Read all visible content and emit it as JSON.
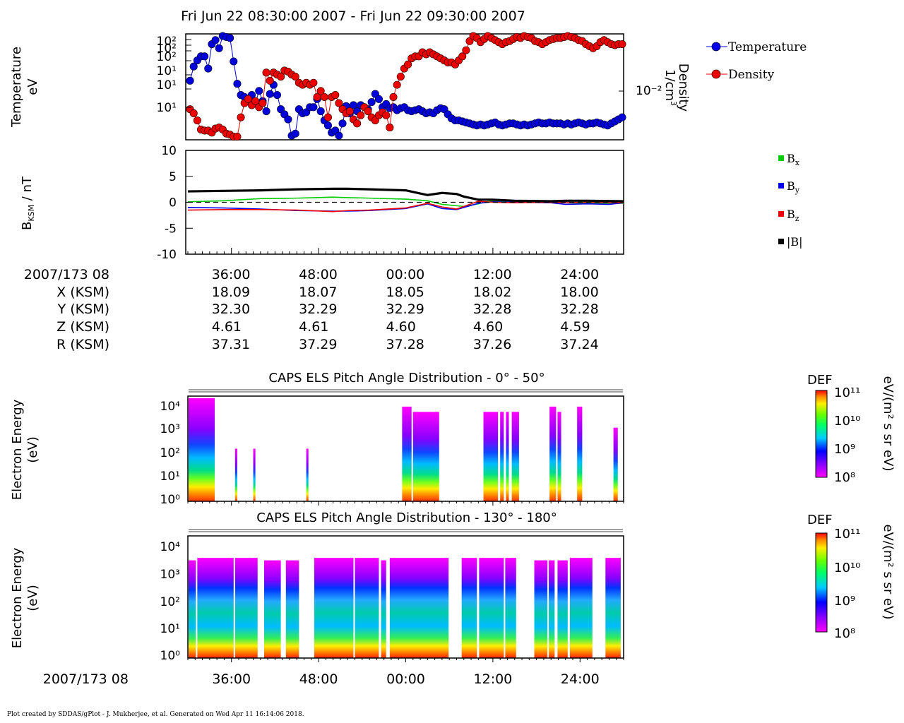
{
  "title": "Fri Jun 22 08:30:00 2007 - Fri Jun 22 09:30:00 2007",
  "footer": "Plot created by SDDAS/gPlot - J. Mukherjee, et al.  Generated on Wed Apr 11 16:14:06 2018.",
  "colors": {
    "temperature": "#0000dd",
    "density": "#ee0000",
    "bx": "#00cc00",
    "by": "#0000ee",
    "bz": "#ee0000",
    "btot": "#000000"
  },
  "chart_data": [
    {
      "type": "scatter",
      "id": "plasma",
      "ylabel_left": [
        "Temperature",
        "eV"
      ],
      "ylabel_right": [
        "Density",
        "1/cm"
      ],
      "ylabel_right_sup": "3",
      "left_ticks": [
        "10²",
        "10²",
        "10²",
        "10¹",
        "10¹",
        "10¹"
      ],
      "right_tick": "10⁻²",
      "x_range_minutes": [
        0,
        60
      ],
      "legend": [
        {
          "name": "Temperature"
        },
        {
          "name": "Density"
        }
      ],
      "series": [
        {
          "name": "Temperature",
          "note": "values as approximate fraction of panel height (0=bottom,1=top)",
          "x": [
            0.3,
            0.8,
            1.3,
            1.8,
            2.3,
            2.8,
            3.3,
            3.8,
            4.3,
            4.8,
            5.3,
            5.8,
            6.3,
            6.8,
            7.3,
            7.8,
            8.3,
            8.8,
            9.3,
            9.8,
            10.3,
            10.8,
            11.3,
            11.8,
            12.3,
            12.8,
            13.3,
            13.8,
            14.3,
            14.8,
            15.3,
            15.8,
            16.3,
            16.8,
            17.3,
            17.8,
            18.3,
            18.8,
            19.3,
            19.8,
            20.3,
            20.8,
            21.3,
            21.8,
            22.3,
            22.8,
            23.3,
            23.8,
            24.3,
            24.8,
            25.3,
            25.8,
            26.3,
            26.8,
            27.3,
            27.8,
            28.3,
            28.8,
            29.3,
            29.8,
            30.3,
            30.8,
            31.3,
            31.8,
            32.3,
            32.8,
            33.3,
            33.8,
            34.3,
            34.8,
            35.3,
            35.8,
            36.3,
            36.8,
            37.3,
            37.8,
            38.3,
            38.8,
            39.3,
            39.8,
            40.3,
            40.8,
            41.3,
            41.8,
            42.3,
            42.8,
            43.3,
            43.8,
            44.3,
            44.8,
            45.3,
            45.8,
            46.3,
            46.8,
            47.3,
            47.8,
            48.3,
            48.8,
            49.3,
            49.8,
            50.3,
            50.8,
            51.3,
            51.8,
            52.3,
            52.8,
            53.3,
            53.8,
            54.3,
            54.8,
            55.3,
            55.8,
            56.3,
            56.8,
            57.3,
            57.8,
            58.3,
            58.8,
            59.3,
            59.8
          ],
          "values": [
            0.56,
            0.7,
            0.76,
            0.8,
            0.8,
            0.68,
            0.92,
            0.96,
            0.88,
            1.0,
            0.99,
            0.98,
            0.75,
            0.53,
            0.42,
            0.4,
            0.36,
            0.42,
            0.34,
            0.46,
            0.36,
            0.26,
            0.43,
            0.52,
            0.42,
            0.28,
            0.23,
            0.18,
            0.02,
            0.04,
            0.28,
            0.24,
            0.25,
            0.3,
            0.3,
            0.38,
            0.26,
            0.17,
            0.12,
            0.05,
            0.07,
            0.02,
            0.14,
            0.31,
            0.24,
            0.32,
            0.26,
            0.32,
            0.3,
            0.28,
            0.35,
            0.43,
            0.38,
            0.3,
            0.33,
            0.29,
            0.3,
            0.27,
            0.29,
            0.3,
            0.27,
            0.26,
            0.27,
            0.28,
            0.26,
            0.24,
            0.25,
            0.24,
            0.27,
            0.29,
            0.28,
            0.23,
            0.19,
            0.17,
            0.17,
            0.16,
            0.15,
            0.14,
            0.13,
            0.12,
            0.13,
            0.12,
            0.13,
            0.14,
            0.15,
            0.13,
            0.12,
            0.13,
            0.14,
            0.14,
            0.13,
            0.12,
            0.13,
            0.12,
            0.13,
            0.14,
            0.15,
            0.14,
            0.14,
            0.15,
            0.14,
            0.14,
            0.14,
            0.13,
            0.14,
            0.13,
            0.14,
            0.15,
            0.14,
            0.13,
            0.14,
            0.14,
            0.15,
            0.14,
            0.13,
            0.12,
            0.14,
            0.16,
            0.18,
            0.2
          ]
        },
        {
          "name": "Density",
          "x": [
            0.3,
            0.8,
            1.3,
            1.8,
            2.3,
            2.8,
            3.3,
            3.8,
            4.3,
            4.8,
            5.3,
            5.8,
            6.3,
            6.8,
            7.3,
            7.8,
            8.3,
            8.8,
            9.3,
            9.8,
            10.3,
            10.8,
            11.3,
            11.8,
            12.3,
            12.8,
            13.3,
            13.8,
            14.3,
            14.8,
            15.3,
            15.8,
            16.3,
            16.8,
            17.3,
            17.8,
            18.3,
            18.8,
            19.3,
            19.8,
            20.3,
            20.8,
            21.3,
            21.8,
            22.3,
            22.8,
            23.3,
            23.8,
            24.3,
            24.8,
            25.3,
            25.8,
            26.3,
            26.8,
            27.3,
            27.8,
            28.3,
            28.8,
            29.3,
            29.8,
            30.3,
            30.8,
            31.3,
            31.8,
            32.3,
            32.8,
            33.3,
            33.8,
            34.3,
            34.8,
            35.3,
            35.8,
            36.3,
            36.8,
            37.3,
            37.8,
            38.3,
            38.8,
            39.3,
            39.8,
            40.3,
            40.8,
            41.3,
            41.8,
            42.3,
            42.8,
            43.3,
            43.8,
            44.3,
            44.8,
            45.3,
            45.8,
            46.3,
            46.8,
            47.3,
            47.8,
            48.3,
            48.8,
            49.3,
            49.8,
            50.3,
            50.8,
            51.3,
            51.8,
            52.3,
            52.8,
            53.3,
            53.8,
            54.3,
            54.8,
            55.3,
            55.8,
            56.3,
            56.8,
            57.3,
            57.8,
            58.3,
            58.8,
            59.3,
            59.8
          ],
          "values": [
            0.28,
            0.24,
            0.17,
            0.08,
            0.07,
            0.07,
            0.05,
            0.09,
            0.1,
            0.08,
            0.04,
            0.03,
            0.01,
            0.01,
            0.2,
            0.34,
            0.38,
            0.32,
            0.36,
            0.3,
            0.34,
            0.64,
            0.56,
            0.64,
            0.62,
            0.6,
            0.66,
            0.65,
            0.62,
            0.6,
            0.54,
            0.52,
            0.54,
            0.52,
            0.54,
            0.4,
            0.46,
            0.4,
            0.2,
            0.4,
            0.42,
            0.34,
            0.28,
            0.24,
            0.26,
            0.18,
            0.14,
            0.22,
            0.3,
            0.26,
            0.2,
            0.17,
            0.22,
            0.25,
            0.22,
            0.1,
            0.4,
            0.52,
            0.6,
            0.68,
            0.72,
            0.78,
            0.8,
            0.8,
            0.84,
            0.82,
            0.84,
            0.82,
            0.8,
            0.78,
            0.76,
            0.74,
            0.74,
            0.72,
            0.76,
            0.8,
            0.86,
            0.95,
            1.0,
            0.98,
            0.94,
            0.97,
            1.0,
            0.98,
            0.96,
            0.94,
            0.92,
            0.94,
            0.95,
            0.97,
            0.99,
            0.98,
            1.0,
            0.99,
            0.98,
            0.95,
            0.94,
            0.92,
            0.94,
            0.96,
            0.97,
            0.98,
            0.98,
            0.99,
            1.0,
            0.99,
            0.98,
            0.96,
            0.95,
            0.92,
            0.9,
            0.88,
            0.9,
            0.94,
            0.96,
            0.94,
            0.92,
            0.91,
            0.92,
            0.92
          ]
        }
      ]
    },
    {
      "type": "line",
      "id": "bfield",
      "ylabel": "B",
      "ylabel_sub": "KSM",
      "ylabel_unit": " / nT",
      "ylim": [
        -10,
        10
      ],
      "ticks": [
        10,
        5,
        0,
        -5,
        -10
      ],
      "x_range_minutes": [
        0,
        60
      ],
      "legend": [
        {
          "name": "B",
          "sub": "x"
        },
        {
          "name": "B",
          "sub": "y"
        },
        {
          "name": "B",
          "sub": "z"
        },
        {
          "name": "|B|"
        }
      ],
      "series": [
        {
          "name": "Bx",
          "x": [
            0,
            5,
            10,
            15,
            20,
            22,
            25,
            30,
            33,
            35,
            38,
            40,
            41,
            42,
            45,
            50,
            52,
            55,
            60
          ],
          "values": [
            0.1,
            0.3,
            0.7,
            0.8,
            1.0,
            0.9,
            0.8,
            0.6,
            0.3,
            -0.4,
            -0.8,
            -0.3,
            0.1,
            0.2,
            0.0,
            0.2,
            -0.1,
            -0.2,
            -0.2
          ]
        },
        {
          "name": "By",
          "x": [
            0,
            5,
            10,
            15,
            20,
            22,
            25,
            30,
            33,
            35,
            37,
            38,
            40,
            42,
            45,
            50,
            52,
            55,
            58,
            60
          ],
          "values": [
            -1.0,
            -1.1,
            -1.3,
            -1.6,
            -1.7,
            -1.7,
            -1.6,
            -1.2,
            -0.3,
            -1.2,
            -1.4,
            -1.0,
            -0.2,
            0.1,
            0.0,
            -0.1,
            -0.4,
            -0.3,
            -0.4,
            -0.1
          ]
        },
        {
          "name": "Bz",
          "x": [
            0,
            5,
            10,
            15,
            20,
            22,
            25,
            30,
            33,
            35,
            37,
            38,
            40,
            42,
            45,
            50,
            52,
            55,
            60
          ],
          "values": [
            -1.5,
            -1.4,
            -1.4,
            -1.5,
            -1.8,
            -1.6,
            -1.5,
            -1.1,
            -0.2,
            -0.9,
            -1.3,
            -0.8,
            0.2,
            0.0,
            -0.1,
            0.0,
            -0.1,
            0.0,
            -0.1
          ]
        },
        {
          "name": "|B|",
          "x": [
            0,
            5,
            10,
            15,
            20,
            22,
            25,
            30,
            32,
            33,
            35,
            37,
            38,
            40,
            42,
            45,
            50,
            52,
            55,
            60
          ],
          "values": [
            2.1,
            2.2,
            2.3,
            2.5,
            2.6,
            2.6,
            2.5,
            2.3,
            1.7,
            1.4,
            1.8,
            1.6,
            1.1,
            0.5,
            0.5,
            0.3,
            0.2,
            0.3,
            0.3,
            0.2
          ]
        },
        {
          "name": "zero-line",
          "x": [
            0,
            60
          ],
          "values": [
            0,
            0
          ]
        }
      ]
    },
    {
      "type": "table",
      "id": "ephemeris",
      "row_labels": [
        "2007/173 08",
        "X (KSM)",
        "Y (KSM)",
        "Z (KSM)",
        "R (KSM)"
      ],
      "columns": [
        "36:00",
        "48:00",
        "00:00",
        "12:00",
        "24:00"
      ],
      "rows": [
        [
          "18.09",
          "18.07",
          "18.05",
          "18.02",
          "18.00"
        ],
        [
          "32.30",
          "32.29",
          "32.29",
          "32.28",
          "32.28"
        ],
        [
          "4.61",
          "4.61",
          "4.60",
          "4.60",
          "4.59"
        ],
        [
          "37.31",
          "37.29",
          "37.28",
          "37.26",
          "37.24"
        ]
      ]
    },
    {
      "type": "heatmap",
      "id": "pad0",
      "title": "CAPS ELS Pitch Angle Distribution - 0° - 50°",
      "ylabel": [
        "Electron Energy",
        "(eV)"
      ],
      "yticks": [
        "10⁴",
        "10³",
        "10²",
        "10¹",
        "10⁰"
      ],
      "colorbar": {
        "label": "DEF",
        "unit": "eV/(m² s sr eV)",
        "ticks": [
          "10¹¹",
          "10¹⁰",
          "10⁹",
          "10⁸"
        ]
      },
      "active_intervals_minutes": [
        [
          0.1,
          3.7
        ],
        [
          6.5,
          6.8
        ],
        [
          9.0,
          9.3
        ],
        [
          16.3,
          16.6
        ],
        [
          29.5,
          30.8
        ],
        [
          31.0,
          34.6
        ],
        [
          40.7,
          42.7
        ],
        [
          43.0,
          43.5
        ],
        [
          43.8,
          44.2
        ],
        [
          44.6,
          45.6
        ],
        [
          49.8,
          50.7
        ],
        [
          50.9,
          51.4
        ],
        [
          53.6,
          54.3
        ],
        [
          58.6,
          59.2
        ]
      ],
      "energy_top_fraction": [
        0.98,
        0.5,
        0.5,
        0.5,
        0.9,
        0.85,
        0.85,
        0.85,
        0.85,
        0.85,
        0.9,
        0.85,
        0.9,
        0.7
      ]
    },
    {
      "type": "heatmap",
      "id": "pad130",
      "title": "CAPS ELS Pitch Angle Distribution - 130° - 180°",
      "ylabel": [
        "Electron Energy",
        "(eV)"
      ],
      "xaxis_date": "2007/173 08",
      "xticks": [
        "36:00",
        "48:00",
        "00:00",
        "12:00",
        "24:00"
      ],
      "yticks": [
        "10⁴",
        "10³",
        "10²",
        "10¹",
        "10⁰"
      ],
      "colorbar": {
        "label": "DEF",
        "unit": "eV/(m² s sr eV)",
        "ticks": [
          "10¹¹",
          "10¹⁰",
          "10⁹",
          "10⁸"
        ]
      },
      "active_intervals_minutes": [
        [
          0.1,
          1.1
        ],
        [
          1.3,
          6.3
        ],
        [
          6.5,
          9.6
        ],
        [
          10.5,
          12.8
        ],
        [
          13.5,
          15.3
        ],
        [
          17.4,
          22.8
        ],
        [
          23.0,
          26.3
        ],
        [
          26.6,
          27.3
        ],
        [
          27.8,
          35.9
        ],
        [
          37.7,
          39.8
        ],
        [
          40.1,
          43.5
        ],
        [
          43.7,
          45.2
        ],
        [
          47.7,
          49.5
        ],
        [
          49.7,
          50.5
        ],
        [
          50.9,
          52.3
        ],
        [
          52.6,
          55.7
        ],
        [
          57.5,
          59.6
        ]
      ],
      "energy_top_fraction": [
        0.8,
        0.82,
        0.82,
        0.8,
        0.8,
        0.82,
        0.82,
        0.8,
        0.82,
        0.82,
        0.82,
        0.82,
        0.8,
        0.8,
        0.8,
        0.82,
        0.82
      ]
    }
  ]
}
